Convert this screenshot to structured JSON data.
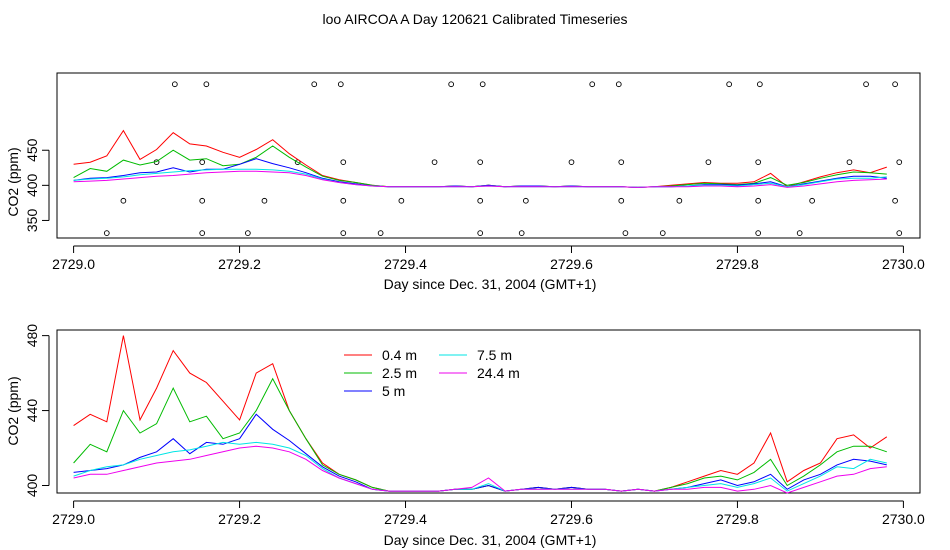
{
  "title": "loo AIRCOA A  Day 120621  Calibrated Timeseries",
  "colors": {
    "0.4 m": "#ff0000",
    "2.5 m": "#00bb00",
    "5 m": "#0000ff",
    "7.5 m": "#00e5e5",
    "24.4 m": "#ee00ee"
  },
  "chart_data": [
    {
      "type": "line",
      "title": "",
      "xlabel": "Day since Dec. 31, 2004 (GMT+1)",
      "ylabel": "CO2 (ppm)",
      "xlim": [
        2728.98,
        2730.02
      ],
      "ylim": [
        325,
        560
      ],
      "xticks": [
        "2729.0",
        "2729.2",
        "2729.4",
        "2729.6",
        "2729.8",
        "2730.0"
      ],
      "yticks": [
        "350",
        "400",
        "450"
      ],
      "grid": false,
      "legend": "none",
      "markers": [
        {
          "x": 2729.04,
          "y": 332
        },
        {
          "x": 2729.155,
          "y": 332
        },
        {
          "x": 2729.21,
          "y": 332
        },
        {
          "x": 2729.325,
          "y": 332
        },
        {
          "x": 2729.37,
          "y": 332
        },
        {
          "x": 2729.49,
          "y": 332
        },
        {
          "x": 2729.54,
          "y": 332
        },
        {
          "x": 2729.665,
          "y": 332
        },
        {
          "x": 2729.71,
          "y": 332
        },
        {
          "x": 2729.825,
          "y": 332
        },
        {
          "x": 2729.875,
          "y": 332
        },
        {
          "x": 2729.995,
          "y": 332
        },
        {
          "x": 2729.06,
          "y": 378
        },
        {
          "x": 2729.155,
          "y": 378
        },
        {
          "x": 2729.23,
          "y": 378
        },
        {
          "x": 2729.325,
          "y": 378
        },
        {
          "x": 2729.395,
          "y": 378
        },
        {
          "x": 2729.49,
          "y": 378
        },
        {
          "x": 2729.545,
          "y": 378
        },
        {
          "x": 2729.66,
          "y": 378
        },
        {
          "x": 2729.73,
          "y": 378
        },
        {
          "x": 2729.825,
          "y": 378
        },
        {
          "x": 2729.89,
          "y": 378
        },
        {
          "x": 2729.99,
          "y": 378
        },
        {
          "x": 2729.1,
          "y": 433
        },
        {
          "x": 2729.155,
          "y": 433
        },
        {
          "x": 2729.27,
          "y": 433
        },
        {
          "x": 2729.325,
          "y": 433
        },
        {
          "x": 2729.435,
          "y": 433
        },
        {
          "x": 2729.49,
          "y": 433
        },
        {
          "x": 2729.6,
          "y": 433
        },
        {
          "x": 2729.66,
          "y": 433
        },
        {
          "x": 2729.765,
          "y": 433
        },
        {
          "x": 2729.825,
          "y": 433
        },
        {
          "x": 2729.935,
          "y": 433
        },
        {
          "x": 2729.995,
          "y": 433
        },
        {
          "x": 2729.122,
          "y": 544
        },
        {
          "x": 2729.16,
          "y": 544
        },
        {
          "x": 2729.29,
          "y": 544
        },
        {
          "x": 2729.322,
          "y": 544
        },
        {
          "x": 2729.455,
          "y": 544
        },
        {
          "x": 2729.493,
          "y": 544
        },
        {
          "x": 2729.625,
          "y": 544
        },
        {
          "x": 2729.657,
          "y": 544
        },
        {
          "x": 2729.79,
          "y": 544
        },
        {
          "x": 2729.827,
          "y": 544
        },
        {
          "x": 2729.955,
          "y": 544
        },
        {
          "x": 2729.99,
          "y": 544
        }
      ],
      "x": [
        2729.0,
        2729.02,
        2729.04,
        2729.06,
        2729.08,
        2729.1,
        2729.12,
        2729.14,
        2729.16,
        2729.18,
        2729.2,
        2729.22,
        2729.24,
        2729.26,
        2729.28,
        2729.3,
        2729.32,
        2729.34,
        2729.36,
        2729.38,
        2729.4,
        2729.42,
        2729.44,
        2729.46,
        2729.48,
        2729.5,
        2729.52,
        2729.54,
        2729.56,
        2729.58,
        2729.6,
        2729.62,
        2729.64,
        2729.66,
        2729.68,
        2729.7,
        2729.72,
        2729.74,
        2729.76,
        2729.78,
        2729.8,
        2729.82,
        2729.84,
        2729.86,
        2729.88,
        2729.9,
        2729.92,
        2729.94,
        2729.96,
        2729.98
      ],
      "series": [
        {
          "name": "0.4 m",
          "values": [
            430,
            433,
            442,
            478,
            437,
            451,
            475,
            459,
            456,
            447,
            440,
            451,
            465,
            445,
            429,
            414,
            408,
            404,
            400,
            398,
            398,
            398,
            398,
            399,
            398,
            400,
            398,
            399,
            399,
            398,
            399,
            398,
            398,
            398,
            397,
            398,
            400,
            402,
            404,
            403,
            403,
            405,
            417,
            398,
            405,
            412,
            418,
            422,
            418,
            426
          ]
        },
        {
          "name": "2.5 m",
          "values": [
            411,
            424,
            420,
            436,
            429,
            434,
            450,
            436,
            438,
            428,
            430,
            440,
            456,
            440,
            426,
            413,
            407,
            404,
            400,
            398,
            398,
            398,
            398,
            399,
            398,
            400,
            398,
            399,
            399,
            398,
            399,
            398,
            398,
            398,
            397,
            398,
            399,
            401,
            403,
            402,
            401,
            403,
            411,
            400,
            404,
            410,
            415,
            419,
            418,
            416
          ]
        },
        {
          "name": "5 m",
          "values": [
            407,
            410,
            411,
            414,
            418,
            419,
            425,
            419,
            423,
            423,
            430,
            438,
            431,
            425,
            418,
            410,
            405,
            402,
            399,
            398,
            398,
            398,
            398,
            399,
            398,
            400,
            398,
            399,
            399,
            398,
            399,
            398,
            398,
            398,
            397,
            398,
            398,
            399,
            401,
            401,
            400,
            402,
            405,
            398,
            402,
            406,
            410,
            413,
            413,
            410
          ]
        },
        {
          "name": "7.5 m",
          "values": [
            407,
            409,
            410,
            412,
            415,
            417,
            419,
            421,
            422,
            423,
            423,
            423,
            422,
            420,
            416,
            409,
            404,
            401,
            399,
            398,
            398,
            398,
            398,
            398,
            398,
            399,
            398,
            398,
            398,
            398,
            398,
            398,
            398,
            398,
            397,
            398,
            398,
            399,
            400,
            400,
            399,
            401,
            403,
            398,
            401,
            405,
            409,
            410,
            410,
            412
          ]
        },
        {
          "name": "24.4 m",
          "values": [
            405,
            406,
            407,
            409,
            411,
            413,
            414,
            416,
            418,
            419,
            420,
            420,
            419,
            418,
            414,
            408,
            404,
            401,
            399,
            398,
            398,
            398,
            398,
            398,
            398,
            399,
            398,
            398,
            398,
            398,
            398,
            398,
            398,
            398,
            397,
            398,
            398,
            398,
            399,
            399,
            398,
            399,
            401,
            397,
            399,
            402,
            405,
            407,
            408,
            409
          ]
        }
      ]
    },
    {
      "type": "line",
      "title": "",
      "xlabel": "Day since Dec. 31, 2004 (GMT+1)",
      "ylabel": "CO2 (ppm)",
      "xlim": [
        2728.98,
        2730.02
      ],
      "ylim": [
        396,
        483
      ],
      "xticks": [
        "2729.0",
        "2729.2",
        "2729.4",
        "2729.6",
        "2729.8",
        "2730.0"
      ],
      "yticks": [
        "400",
        "440",
        "480"
      ],
      "grid": false,
      "legend": "top-left",
      "x": [
        2729.0,
        2729.02,
        2729.04,
        2729.06,
        2729.08,
        2729.1,
        2729.12,
        2729.14,
        2729.16,
        2729.18,
        2729.2,
        2729.22,
        2729.24,
        2729.26,
        2729.28,
        2729.3,
        2729.32,
        2729.34,
        2729.36,
        2729.38,
        2729.4,
        2729.42,
        2729.44,
        2729.46,
        2729.48,
        2729.5,
        2729.52,
        2729.54,
        2729.56,
        2729.58,
        2729.6,
        2729.62,
        2729.64,
        2729.66,
        2729.68,
        2729.7,
        2729.72,
        2729.74,
        2729.76,
        2729.78,
        2729.8,
        2729.82,
        2729.84,
        2729.86,
        2729.88,
        2729.9,
        2729.92,
        2729.94,
        2729.96,
        2729.98
      ],
      "series": [
        {
          "name": "0.4 m",
          "values": [
            432,
            438,
            434,
            480,
            435,
            452,
            472,
            460,
            455,
            445,
            435,
            460,
            465,
            440,
            425,
            412,
            406,
            403,
            399,
            397,
            397,
            397,
            397,
            398,
            398,
            400,
            397,
            398,
            399,
            398,
            399,
            398,
            398,
            397,
            398,
            397,
            399,
            402,
            405,
            408,
            406,
            412,
            428,
            402,
            408,
            412,
            425,
            427,
            420,
            426
          ]
        },
        {
          "name": "2.5 m",
          "values": [
            412,
            422,
            418,
            440,
            428,
            433,
            452,
            434,
            437,
            425,
            428,
            440,
            457,
            440,
            425,
            411,
            406,
            403,
            399,
            397,
            397,
            397,
            397,
            398,
            398,
            400,
            397,
            398,
            399,
            398,
            399,
            398,
            398,
            397,
            398,
            397,
            399,
            401,
            404,
            405,
            403,
            407,
            414,
            400,
            405,
            411,
            418,
            421,
            421,
            418
          ]
        },
        {
          "name": "5 m",
          "values": [
            407,
            408,
            409,
            411,
            415,
            418,
            425,
            417,
            423,
            422,
            425,
            438,
            430,
            424,
            417,
            410,
            405,
            402,
            398,
            397,
            397,
            397,
            397,
            398,
            398,
            400,
            397,
            398,
            399,
            398,
            399,
            398,
            398,
            397,
            398,
            397,
            398,
            399,
            401,
            403,
            400,
            402,
            406,
            398,
            403,
            406,
            411,
            414,
            413,
            411
          ]
        },
        {
          "name": "7.5 m",
          "values": [
            405,
            408,
            410,
            411,
            414,
            416,
            418,
            419,
            421,
            423,
            422,
            423,
            422,
            420,
            416,
            409,
            404,
            401,
            398,
            397,
            397,
            397,
            397,
            398,
            398,
            401,
            397,
            398,
            398,
            398,
            398,
            398,
            398,
            397,
            398,
            397,
            398,
            399,
            400,
            401,
            399,
            401,
            404,
            397,
            401,
            405,
            410,
            409,
            414,
            412
          ]
        },
        {
          "name": "24.4 m",
          "values": [
            404,
            406,
            406,
            408,
            410,
            412,
            413,
            414,
            416,
            418,
            420,
            421,
            420,
            418,
            414,
            408,
            404,
            401,
            398,
            397,
            397,
            397,
            397,
            398,
            399,
            404,
            397,
            398,
            398,
            398,
            398,
            398,
            398,
            397,
            398,
            397,
            398,
            398,
            399,
            399,
            397,
            398,
            400,
            396,
            399,
            402,
            405,
            406,
            409,
            410
          ]
        }
      ]
    }
  ]
}
